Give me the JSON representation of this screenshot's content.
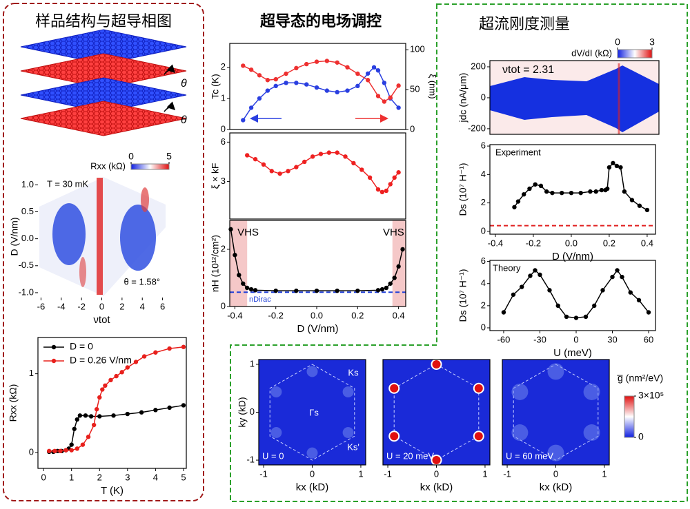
{
  "panels": [
    {
      "title": "样品结构与超导相图"
    },
    {
      "title": "超导态的电场调控"
    },
    {
      "title": "超流刚度测量"
    }
  ],
  "illustration": {
    "angle_labels": [
      "θ",
      "θ"
    ]
  },
  "chart_data": [
    {
      "type": "heatmap",
      "xlabel": "νtot",
      "ylabel": "D (V/nm)",
      "xlim": [
        -6.3,
        6.3
      ],
      "ylim": [
        -1.09,
        1.17
      ],
      "xticks": [
        -6,
        -4,
        -2,
        0,
        2,
        4,
        6
      ],
      "yticks": [
        {
          "value": 1,
          "label": "1.0"
        },
        0.5,
        {
          "value": 0,
          "label": "0.0"
        },
        -0.5,
        {
          "value": -1,
          "label": "-1.0"
        }
      ],
      "colorbar": {
        "label": "Rxx (kΩ)",
        "lim": [
          0,
          5
        ],
        "ticks": [
          0,
          5
        ]
      },
      "annotations": [
        "T = 30 mK",
        "θ = 1.58°"
      ]
    },
    {
      "type": "line",
      "xlabel": "T (K)",
      "ylabel": "Rxx (kΩ)",
      "xlim": [
        -0.2,
        5.1
      ],
      "ylim": [
        -0.2,
        1.46
      ],
      "xticks": [
        0,
        1,
        2,
        3,
        4,
        5
      ],
      "yticks": [
        0,
        1
      ],
      "legend": "top-left",
      "series": [
        {
          "name": "D = 0",
          "color": "#000000",
          "x": [
            0.2,
            0.35,
            0.5,
            0.65,
            0.8,
            0.9,
            1.0,
            1.1,
            1.2,
            1.3,
            1.5,
            1.7,
            2,
            2.5,
            3,
            3.5,
            4,
            4.5,
            5
          ],
          "values": [
            0.01,
            0.01,
            0.02,
            0.02,
            0.03,
            0.05,
            0.1,
            0.3,
            0.42,
            0.47,
            0.47,
            0.46,
            0.46,
            0.47,
            0.49,
            0.51,
            0.54,
            0.57,
            0.6
          ]
        },
        {
          "name": "D = 0.26 V/nm",
          "color": "#e8201c",
          "x": [
            0.2,
            0.4,
            0.6,
            0.8,
            1.0,
            1.2,
            1.4,
            1.6,
            1.8,
            1.9,
            2.0,
            2.1,
            2.2,
            2.4,
            2.6,
            2.8,
            3.0,
            3.3,
            3.6,
            4,
            4.5,
            5
          ],
          "values": [
            0.02,
            0.02,
            0.02,
            0.03,
            0.03,
            0.05,
            0.1,
            0.2,
            0.35,
            0.55,
            0.7,
            0.8,
            0.85,
            0.92,
            0.97,
            1.02,
            1.08,
            1.15,
            1.22,
            1.27,
            1.32,
            1.34
          ]
        }
      ]
    },
    {
      "type": "line",
      "ylabel": "Tc (K)",
      "y2label": "ξ (nm)",
      "xlim": [
        -0.425,
        0.435
      ],
      "ylim": [
        0,
        2.77
      ],
      "yticks": [
        0,
        1,
        2
      ],
      "y2lim": [
        0,
        108
      ],
      "y2ticks": [
        0,
        50,
        100
      ],
      "series": [
        {
          "color": "#2a3fe0",
          "x": [
            -0.36,
            -0.32,
            -0.28,
            -0.24,
            -0.2,
            -0.15,
            -0.1,
            -0.05,
            0,
            0.05,
            0.1,
            0.15,
            0.2,
            0.25,
            0.28,
            0.3,
            0.33,
            0.36,
            0.4
          ],
          "values": [
            0.3,
            0.7,
            1.0,
            1.25,
            1.4,
            1.5,
            1.5,
            1.45,
            1.35,
            1.25,
            1.2,
            1.25,
            1.4,
            1.8,
            2.0,
            1.9,
            1.5,
            1.0,
            0.7
          ]
        },
        {
          "color": "#ee3030",
          "axis": "y2",
          "x": [
            -0.36,
            -0.32,
            -0.28,
            -0.24,
            -0.2,
            -0.15,
            -0.1,
            -0.05,
            0,
            0.05,
            0.1,
            0.15,
            0.2,
            0.25,
            0.3,
            0.33,
            0.36,
            0.4
          ],
          "values": [
            80,
            75,
            68,
            62,
            63,
            70,
            77,
            82,
            85,
            86,
            84,
            78,
            70,
            62,
            42,
            35,
            40,
            55
          ]
        }
      ]
    },
    {
      "type": "line",
      "ylabel": "ξ × kF",
      "xlim": [
        -0.425,
        0.435
      ],
      "ylim": [
        0.15,
        6.7
      ],
      "yticks": [
        3,
        6
      ],
      "series": [
        {
          "color": "#ee2020",
          "x": [
            -0.34,
            -0.3,
            -0.26,
            -0.22,
            -0.18,
            -0.14,
            -0.1,
            -0.06,
            -0.02,
            0.02,
            0.06,
            0.1,
            0.14,
            0.18,
            0.22,
            0.26,
            0.3,
            0.32,
            0.34,
            0.36,
            0.38,
            0.4
          ],
          "values": [
            5.0,
            4.7,
            4.3,
            3.8,
            3.6,
            3.8,
            4.1,
            4.5,
            4.9,
            5.1,
            5.2,
            5.2,
            4.9,
            4.4,
            3.9,
            3.3,
            2.4,
            2.2,
            2.3,
            2.8,
            3.3,
            3.7
          ]
        }
      ]
    },
    {
      "type": "line",
      "xlabel": "D (V/nm)",
      "ylabel": "nH (10¹²/cm²)",
      "xlim": [
        -0.425,
        0.435
      ],
      "ylim": [
        0,
        3.01
      ],
      "xticks": [
        -0.4,
        -0.2,
        {
          "value": 0,
          "label": "0.0"
        },
        0.2,
        0.4
      ],
      "yticks": [
        0,
        2
      ],
      "shaded": [
        [
          -0.425,
          -0.34
        ],
        [
          0.37,
          0.435
        ]
      ],
      "shade_labels": [
        "VHS",
        "VHS"
      ],
      "hline": {
        "value": 0.5,
        "label": "nDirac",
        "color": "#1f3fd8"
      },
      "series": [
        {
          "color": "#000000",
          "x": [
            -0.42,
            -0.4,
            -0.38,
            -0.36,
            -0.34,
            -0.32,
            -0.3,
            -0.2,
            -0.1,
            0,
            0.1,
            0.2,
            0.3,
            0.32,
            0.34,
            0.36,
            0.38,
            0.4,
            0.42
          ],
          "values": [
            2.7,
            1.8,
            1.1,
            0.8,
            0.65,
            0.6,
            0.57,
            0.55,
            0.55,
            0.55,
            0.55,
            0.55,
            0.57,
            0.6,
            0.65,
            0.8,
            1.0,
            1.4,
            2.0
          ]
        }
      ]
    },
    {
      "type": "heatmap",
      "ylabel": "jdc (nA/μm)",
      "xlim": [
        -0.429,
        0.444
      ],
      "ylim": [
        -236,
        240
      ],
      "yticks": [
        200,
        0,
        -200
      ],
      "colorbar": {
        "label": "dV/dI (kΩ)",
        "lim": [
          0,
          3
        ],
        "ticks": [
          0,
          3
        ]
      },
      "annotations": [
        "νtot = 2.31"
      ]
    },
    {
      "type": "line",
      "xlabel": "D (V/nm)",
      "ylabel": "Ds (10⁷ H⁻¹)",
      "xlim": [
        -0.429,
        0.444
      ],
      "ylim": [
        -0.2,
        6.1
      ],
      "xticks": [
        -0.4,
        -0.2,
        {
          "value": 0,
          "label": "0.0"
        },
        0.2,
        0.4
      ],
      "yticks": [
        0,
        2,
        4,
        6
      ],
      "hline": {
        "value": 0.4,
        "color": "#e02020"
      },
      "annotations": [
        "Experiment"
      ],
      "series": [
        {
          "color": "#000000",
          "x": [
            -0.3,
            -0.28,
            -0.25,
            -0.22,
            -0.19,
            -0.16,
            -0.13,
            -0.1,
            -0.05,
            0,
            0.05,
            0.1,
            0.13,
            0.16,
            0.18,
            0.19,
            0.2,
            0.22,
            0.24,
            0.26,
            0.28,
            0.32,
            0.36,
            0.4
          ],
          "values": [
            1.7,
            2.1,
            2.6,
            3.0,
            3.3,
            3.2,
            2.8,
            2.7,
            2.7,
            2.7,
            2.7,
            2.8,
            2.8,
            2.9,
            2.9,
            3.0,
            4.5,
            4.8,
            4.6,
            4.5,
            2.8,
            2.2,
            1.8,
            1.5
          ]
        }
      ]
    },
    {
      "type": "line",
      "xlabel": "U (meV)",
      "ylabel": "Ds (10⁷ H⁻¹)",
      "xlim": [
        -71.4,
        65.7
      ],
      "ylim": [
        -0.25,
        6.1
      ],
      "xticks": [
        -60,
        -30,
        0,
        30,
        60
      ],
      "yticks": [
        0,
        2,
        4,
        6
      ],
      "annotations": [
        "Theory"
      ],
      "series": [
        {
          "color": "#000000",
          "x": [
            -60,
            -52,
            -45,
            -38,
            -34,
            -30,
            -22,
            -15,
            -8,
            0,
            8,
            15,
            22,
            30,
            34,
            38,
            45,
            52,
            60
          ],
          "values": [
            1.4,
            3.0,
            3.7,
            4.7,
            5.2,
            4.8,
            3.4,
            2.0,
            1.0,
            0.9,
            1.0,
            2.0,
            3.4,
            4.6,
            5.2,
            4.6,
            3.2,
            2.5,
            1.4
          ]
        }
      ]
    },
    {
      "type": "heatmap",
      "xlabel": "kx (kD)",
      "ylabel": "ky (kD)",
      "xlim": [
        -1.1,
        1.1
      ],
      "ylim": [
        -1.1,
        1.1
      ],
      "xticks": [
        -1,
        0,
        1
      ],
      "yticks": [
        -1,
        0,
        1
      ],
      "annotations": [
        "Ks",
        "Γs",
        "Ks'",
        "U = 0"
      ]
    },
    {
      "type": "heatmap",
      "xlabel": "kx (kD)",
      "xlim": [
        -1.1,
        1.1
      ],
      "ylim": [
        -1.1,
        1.1
      ],
      "xticks": [
        -1,
        0,
        1
      ],
      "annotations": [
        "U = 20 meV"
      ]
    },
    {
      "type": "heatmap",
      "xlabel": "kx (kD)",
      "xlim": [
        -1.1,
        1.1
      ],
      "ylim": [
        -1.1,
        1.1
      ],
      "xticks": [
        -1,
        0,
        1
      ],
      "annotations": [
        "U = 60 meV"
      ],
      "colorbar": {
        "label": "g̅ (nm²/eV)",
        "lim": [
          0,
          300000
        ],
        "ticks": [
          {
            "value": 300000,
            "label": "3×10⁵"
          },
          0
        ]
      }
    }
  ]
}
